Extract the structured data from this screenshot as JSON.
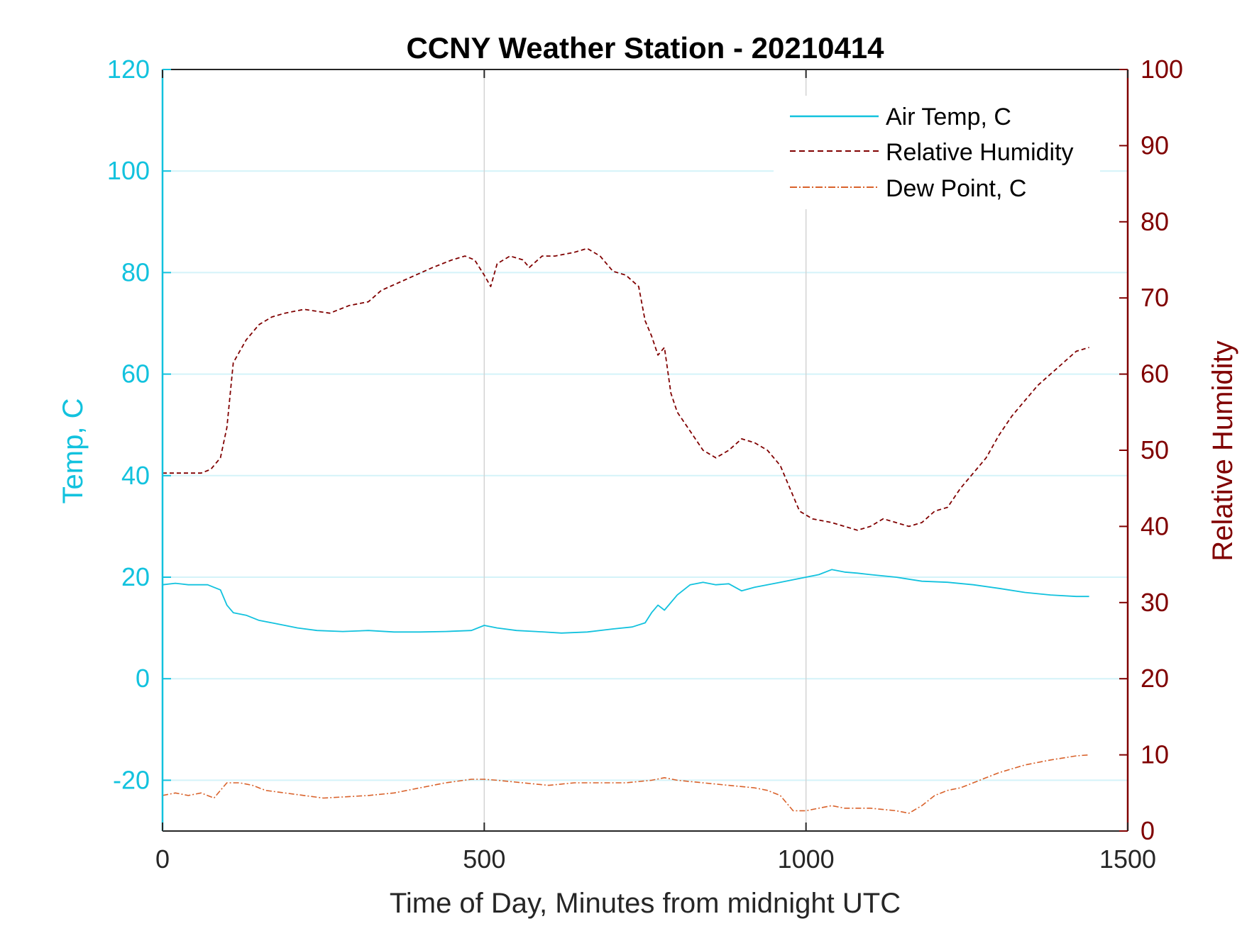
{
  "chart_data": {
    "type": "line",
    "title": "CCNY Weather Station - 20210414",
    "xlabel": "Time of Day, Minutes from midnight UTC",
    "ylabel_left": "Temp, C",
    "ylabel_right": "Relative Humidity",
    "xlim": [
      0,
      1500
    ],
    "ylim_left": [
      -30,
      120
    ],
    "ylim_right": [
      0,
      100
    ],
    "x_ticks": [
      "0",
      "500",
      "1000",
      "1500"
    ],
    "x_tick_values": [
      0,
      500,
      1000,
      1500
    ],
    "y_left_ticks": [
      "-20",
      "0",
      "20",
      "40",
      "60",
      "80",
      "100",
      "120"
    ],
    "y_left_tick_values": [
      -20,
      0,
      20,
      40,
      60,
      80,
      100,
      120
    ],
    "y_right_ticks": [
      "0",
      "10",
      "20",
      "30",
      "40",
      "50",
      "60",
      "70",
      "80",
      "90",
      "100"
    ],
    "y_right_tick_values": [
      0,
      10,
      20,
      30,
      40,
      50,
      60,
      70,
      80,
      90,
      100
    ],
    "grid": {
      "x": true,
      "y_left": true
    },
    "legend_position": "top-right",
    "colors": {
      "air_temp": "#12c2de",
      "humidity": "#800000",
      "dew_point": "#d9622b",
      "left_axis": "#12c2de",
      "right_axis": "#800000",
      "grid_x": "#d3d3d3",
      "grid_y": "#d4f3f9"
    },
    "series": [
      {
        "name": "Air Temp, C",
        "axis": "left",
        "style": "solid",
        "x": [
          0,
          20,
          40,
          70,
          90,
          100,
          110,
          130,
          150,
          170,
          190,
          210,
          240,
          280,
          320,
          360,
          400,
          440,
          480,
          500,
          520,
          550,
          580,
          620,
          660,
          700,
          730,
          750,
          760,
          770,
          780,
          800,
          820,
          840,
          860,
          880,
          900,
          920,
          940,
          960,
          980,
          1000,
          1020,
          1040,
          1060,
          1080,
          1100,
          1140,
          1180,
          1220,
          1260,
          1300,
          1340,
          1380,
          1420,
          1440
        ],
        "y": [
          18.5,
          18.8,
          18.5,
          18.5,
          17.5,
          14.5,
          13,
          12.5,
          11.5,
          11,
          10.5,
          10,
          9.5,
          9.3,
          9.5,
          9.2,
          9.2,
          9.3,
          9.5,
          10.5,
          10,
          9.5,
          9.3,
          9,
          9.2,
          9.8,
          10.2,
          11,
          13,
          14.5,
          13.5,
          16.5,
          18.5,
          19,
          18.5,
          18.7,
          17.3,
          18,
          18.5,
          19,
          19.5,
          20,
          20.5,
          21.5,
          21,
          20.8,
          20.5,
          20,
          19.2,
          19,
          18.5,
          17.8,
          17,
          16.5,
          16.2,
          16.2
        ]
      },
      {
        "name": "Relative Humidity",
        "axis": "right",
        "style": "dashed",
        "x": [
          0,
          30,
          60,
          75,
          90,
          100,
          110,
          130,
          150,
          170,
          190,
          220,
          260,
          290,
          320,
          340,
          380,
          420,
          450,
          470,
          485,
          500,
          510,
          520,
          540,
          560,
          570,
          590,
          610,
          640,
          660,
          680,
          700,
          720,
          740,
          750,
          760,
          770,
          780,
          790,
          800,
          820,
          840,
          860,
          880,
          900,
          920,
          940,
          960,
          975,
          990,
          1010,
          1040,
          1060,
          1080,
          1100,
          1120,
          1140,
          1160,
          1180,
          1200,
          1220,
          1240,
          1260,
          1280,
          1300,
          1320,
          1340,
          1360,
          1380,
          1400,
          1420,
          1440
        ],
        "y": [
          47,
          47,
          47,
          47.5,
          49,
          53,
          61.5,
          64.5,
          66.5,
          67.5,
          68,
          68.5,
          68,
          69,
          69.5,
          71,
          72.5,
          74,
          75,
          75.5,
          75,
          73,
          71.5,
          74.5,
          75.5,
          75,
          74,
          75.5,
          75.5,
          76,
          76.5,
          75.5,
          73.5,
          73,
          71.5,
          67,
          65,
          62.5,
          63.5,
          57.5,
          55,
          52.5,
          50,
          49,
          50,
          51.5,
          51,
          50,
          48,
          45,
          42,
          41,
          40.5,
          40,
          39.5,
          40,
          41,
          40.5,
          40,
          40.5,
          42,
          42.5,
          45,
          47,
          49,
          52,
          54.5,
          56.5,
          58.5,
          60,
          61.5,
          63,
          63.5
        ]
      },
      {
        "name": "Dew Point, C",
        "axis": "left",
        "style": "dashdot",
        "x": [
          0,
          20,
          40,
          60,
          80,
          90,
          100,
          120,
          140,
          160,
          190,
          220,
          250,
          280,
          320,
          360,
          400,
          440,
          480,
          500,
          520,
          560,
          600,
          640,
          680,
          720,
          760,
          780,
          800,
          840,
          880,
          920,
          940,
          960,
          980,
          1000,
          1020,
          1040,
          1060,
          1080,
          1100,
          1140,
          1160,
          1180,
          1200,
          1220,
          1240,
          1260,
          1280,
          1300,
          1340,
          1380,
          1420,
          1440
        ],
        "y": [
          -23,
          -22.5,
          -23,
          -22.5,
          -23.5,
          -22,
          -20.5,
          -20.5,
          -21,
          -22,
          -22.5,
          -23,
          -23.5,
          -23.3,
          -23,
          -22.5,
          -21.5,
          -20.5,
          -19.8,
          -19.8,
          -20,
          -20.5,
          -21,
          -20.5,
          -20.5,
          -20.5,
          -20,
          -19.5,
          -20,
          -20.5,
          -21,
          -21.5,
          -22,
          -23,
          -26,
          -26,
          -25.5,
          -25,
          -25.5,
          -25.5,
          -25.5,
          -26,
          -26.5,
          -25,
          -23,
          -22,
          -21.5,
          -20.5,
          -19.5,
          -18.5,
          -17,
          -16,
          -15.2,
          -15
        ]
      }
    ]
  }
}
